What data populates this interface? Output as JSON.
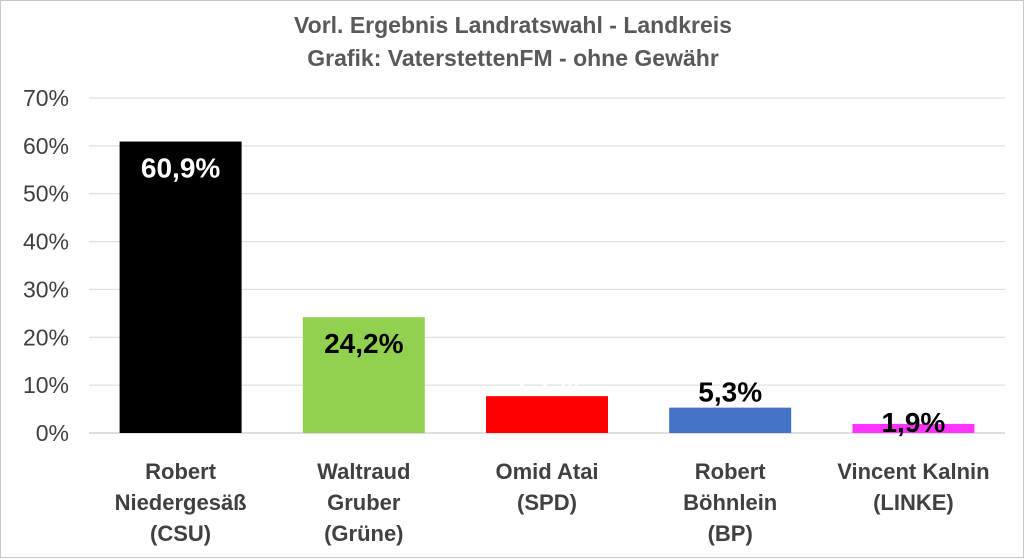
{
  "chart_data": {
    "type": "bar",
    "title": "Vorl. Ergebnis Landratswahl - Landkreis",
    "subtitle": "Grafik: VaterstettenFM - ohne Gewähr",
    "categories": [
      [
        "Robert",
        "Niedergesäß",
        "(CSU)"
      ],
      [
        "Waltraud",
        "Gruber",
        "(Grüne)"
      ],
      [
        "Omid Atai",
        "(SPD)"
      ],
      [
        "Robert",
        "Böhnlein",
        "(BP)"
      ],
      [
        "Vincent Kalnin",
        "(LINKE)"
      ]
    ],
    "values": [
      60.9,
      24.2,
      7.7,
      5.3,
      1.9
    ],
    "data_labels": [
      "60,9%",
      "24,2%",
      "7,7%",
      "5,3%",
      "1,9%"
    ],
    "colors": [
      "#000000",
      "#92d050",
      "#ff0000",
      "#4472c4",
      "#ff33ff"
    ],
    "label_colors": [
      "#ffffff",
      "#000000",
      "#ffffff",
      "#000000",
      "#000000"
    ],
    "ylim": [
      0,
      70
    ],
    "yticks": [
      0,
      10,
      20,
      30,
      40,
      50,
      60,
      70
    ],
    "ytick_labels": [
      "0%",
      "10%",
      "20%",
      "30%",
      "40%",
      "50%",
      "60%",
      "70%"
    ],
    "grid": true,
    "legend": "none"
  }
}
